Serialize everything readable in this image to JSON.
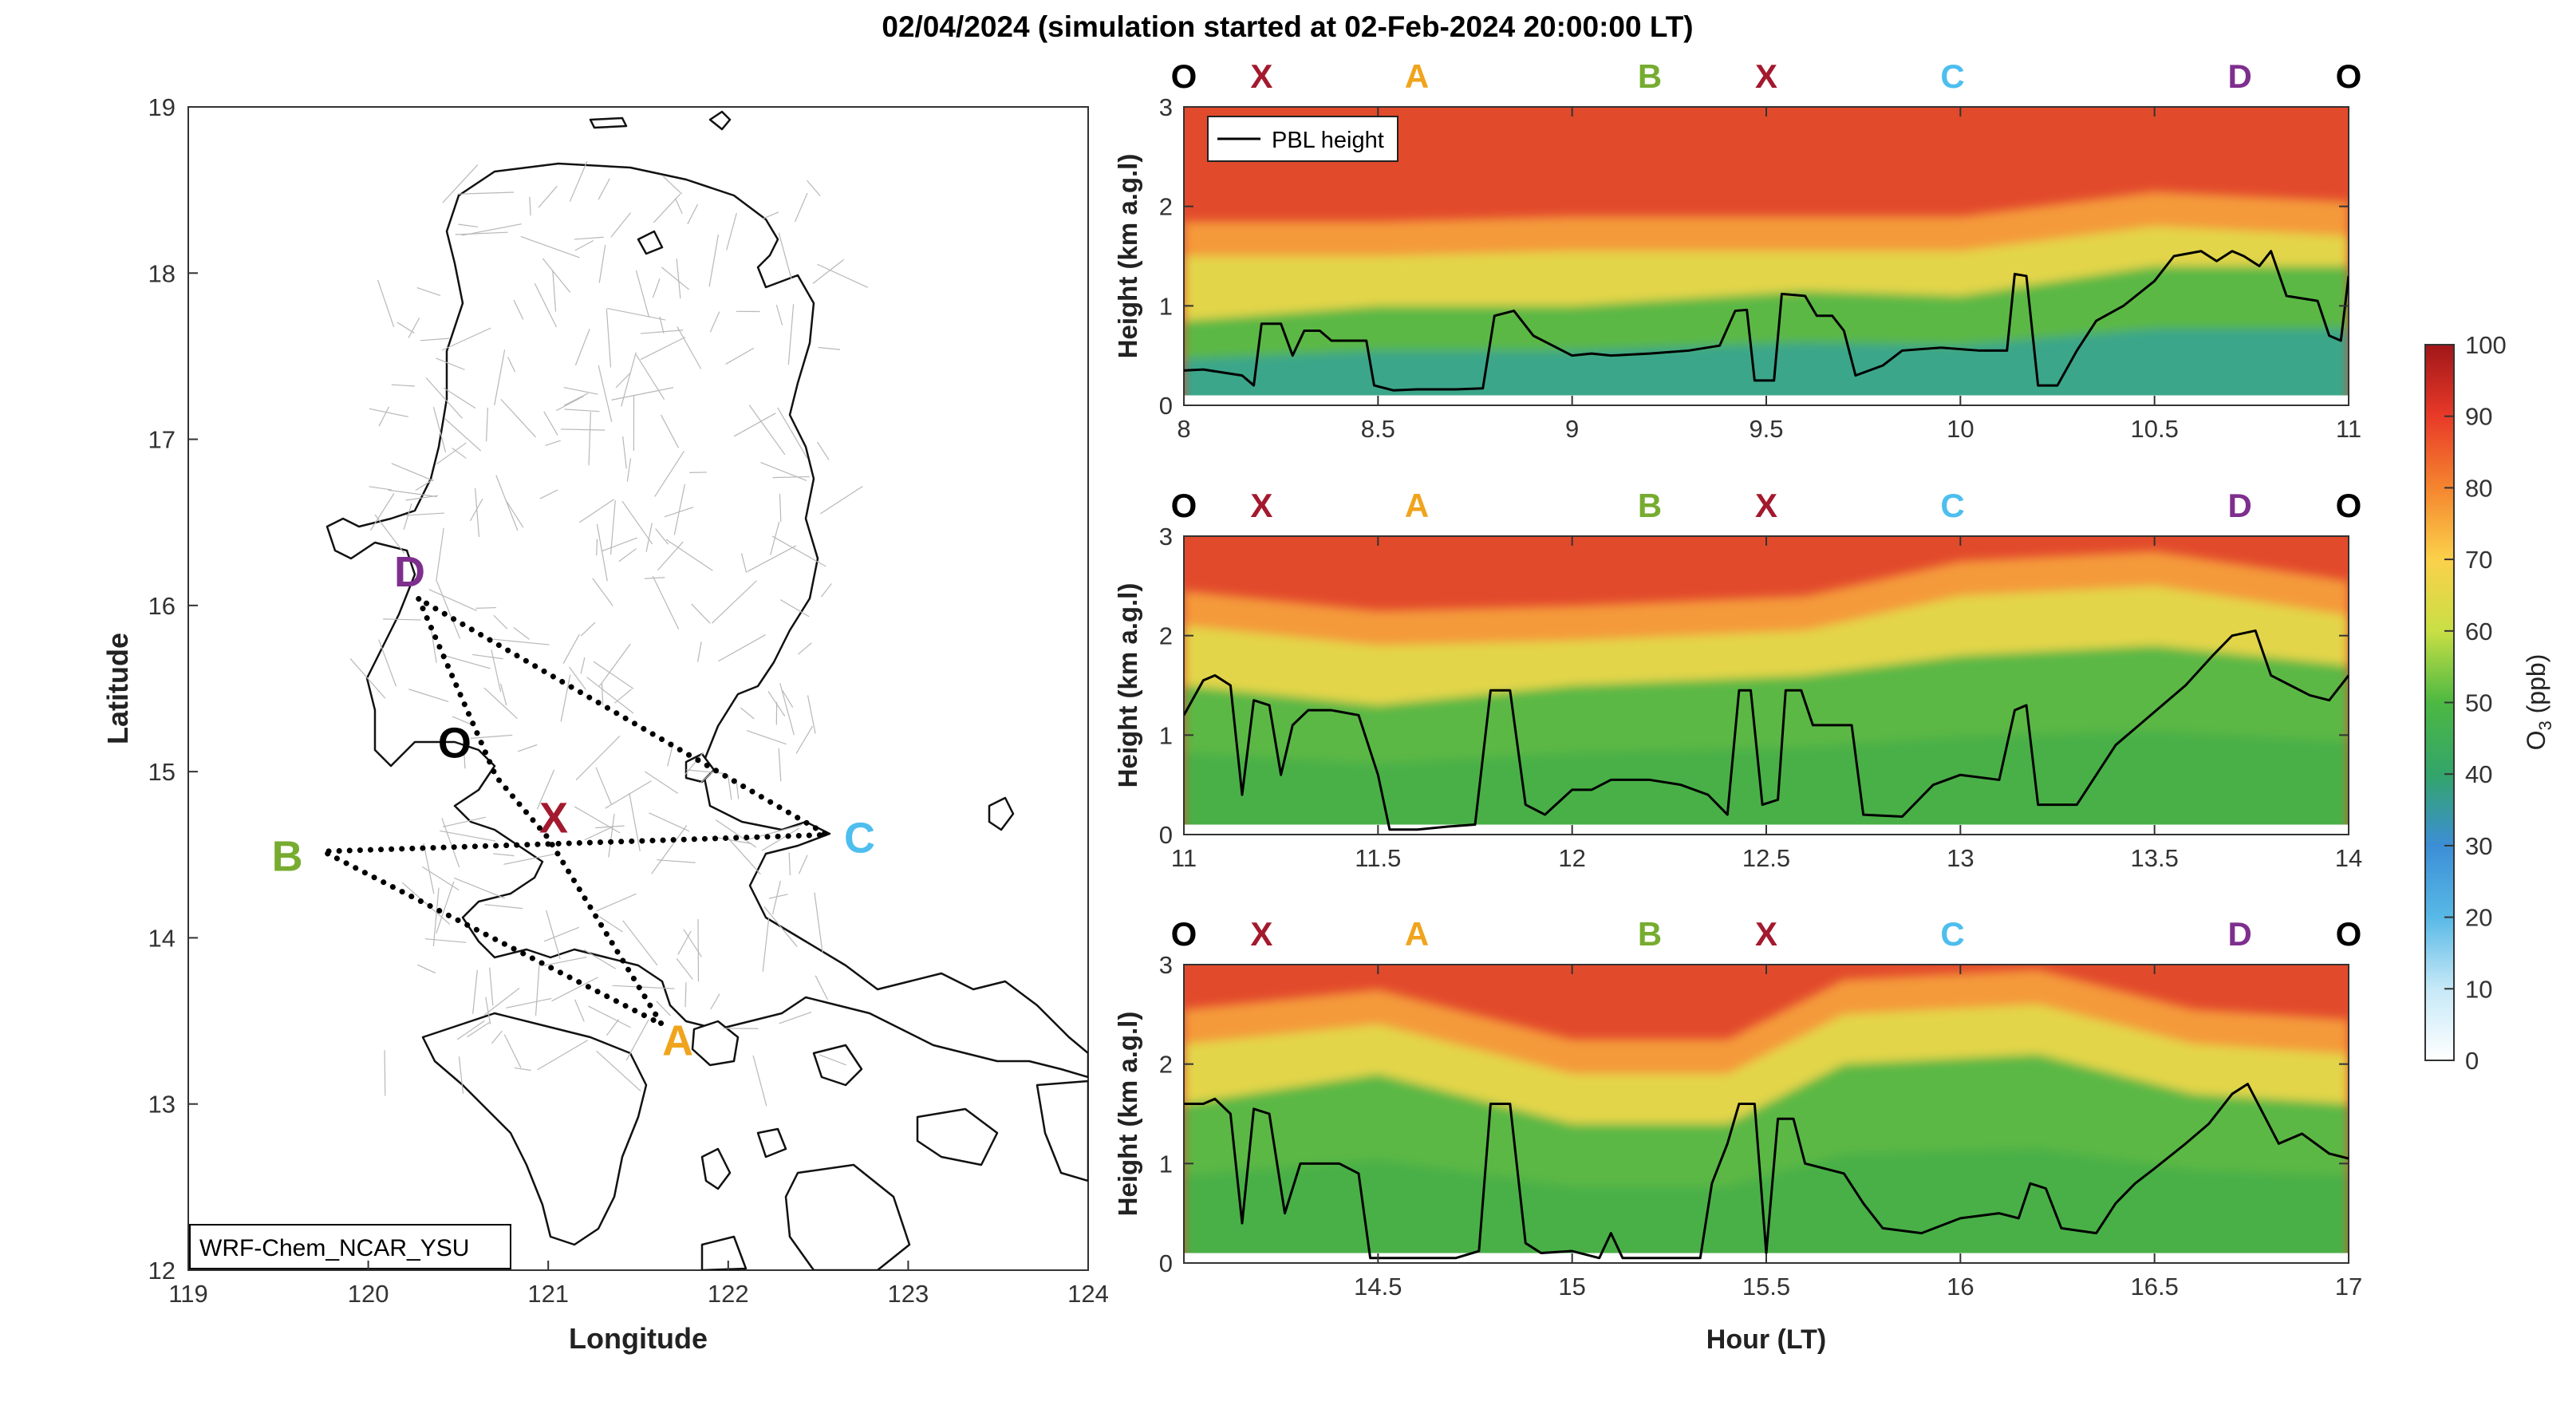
{
  "title": "02/04/2024 (simulation started at 02-Feb-2024 20:00:00 LT)",
  "map": {
    "label": "WRF-Chem_NCAR_YSU",
    "xlabel": "Longitude",
    "ylabel": "Latitude",
    "xlim": [
      119,
      124
    ],
    "ylim": [
      12,
      19
    ],
    "xticks": [
      "119",
      "120",
      "121",
      "122",
      "123",
      "124"
    ],
    "yticks": [
      "12",
      "13",
      "14",
      "15",
      "16",
      "17",
      "18",
      "19"
    ],
    "points": [
      {
        "name": "O",
        "lon": 120.48,
        "lat": 15.17,
        "color": "#000000"
      },
      {
        "name": "X",
        "lon": 121.03,
        "lat": 14.72,
        "color": "#a3192e"
      },
      {
        "name": "A",
        "lon": 121.72,
        "lat": 13.38,
        "color": "#f0a41d"
      },
      {
        "name": "B",
        "lon": 119.55,
        "lat": 14.49,
        "color": "#77ac30"
      },
      {
        "name": "C",
        "lon": 122.73,
        "lat": 14.6,
        "color": "#4dbeee"
      },
      {
        "name": "D",
        "lon": 120.23,
        "lat": 16.2,
        "color": "#7e2f8e"
      }
    ],
    "route": [
      {
        "lon": 120.28,
        "lat": 16.04
      },
      {
        "lon": 120.71,
        "lat": 14.97
      },
      {
        "lon": 121.0,
        "lat": 14.6
      },
      {
        "lon": 121.63,
        "lat": 13.48
      },
      {
        "lon": 119.75,
        "lat": 14.52
      },
      {
        "lon": 122.55,
        "lat": 14.62
      },
      {
        "lon": 120.28,
        "lat": 16.04
      }
    ]
  },
  "chart_data": [
    {
      "type": "heatmap",
      "xlim": [
        8,
        11
      ],
      "xticks": [
        "8",
        "8.5",
        "9",
        "9.5",
        "10",
        "10.5",
        "11"
      ],
      "ylim": [
        0,
        3
      ],
      "yticks": [
        "0",
        "1",
        "2",
        "3"
      ],
      "ylabel": "Height (km a.g.l)",
      "xlabel": "",
      "legend": "PBL height",
      "top_markers": [
        {
          "label": "O",
          "x": 8.0
        },
        {
          "label": "X",
          "x": 8.2
        },
        {
          "label": "A",
          "x": 8.6
        },
        {
          "label": "B",
          "x": 9.2
        },
        {
          "label": "X",
          "x": 9.5
        },
        {
          "label": "C",
          "x": 9.98
        },
        {
          "label": "D",
          "x": 10.72
        },
        {
          "label": "O",
          "x": 11.0
        }
      ],
      "pbl": [
        [
          8.0,
          0.35
        ],
        [
          8.05,
          0.36
        ],
        [
          8.1,
          0.33
        ],
        [
          8.15,
          0.3
        ],
        [
          8.18,
          0.2
        ],
        [
          8.2,
          0.82
        ],
        [
          8.25,
          0.82
        ],
        [
          8.28,
          0.5
        ],
        [
          8.31,
          0.75
        ],
        [
          8.35,
          0.75
        ],
        [
          8.38,
          0.65
        ],
        [
          8.47,
          0.65
        ],
        [
          8.49,
          0.2
        ],
        [
          8.54,
          0.15
        ],
        [
          8.6,
          0.16
        ],
        [
          8.7,
          0.16
        ],
        [
          8.77,
          0.17
        ],
        [
          8.8,
          0.9
        ],
        [
          8.85,
          0.95
        ],
        [
          8.9,
          0.7
        ],
        [
          8.95,
          0.6
        ],
        [
          9.0,
          0.5
        ],
        [
          9.05,
          0.52
        ],
        [
          9.1,
          0.5
        ],
        [
          9.2,
          0.52
        ],
        [
          9.3,
          0.55
        ],
        [
          9.38,
          0.6
        ],
        [
          9.42,
          0.95
        ],
        [
          9.45,
          0.96
        ],
        [
          9.47,
          0.25
        ],
        [
          9.52,
          0.25
        ],
        [
          9.54,
          1.12
        ],
        [
          9.6,
          1.1
        ],
        [
          9.63,
          0.9
        ],
        [
          9.67,
          0.9
        ],
        [
          9.7,
          0.75
        ],
        [
          9.73,
          0.3
        ],
        [
          9.8,
          0.4
        ],
        [
          9.85,
          0.55
        ],
        [
          9.95,
          0.58
        ],
        [
          10.05,
          0.55
        ],
        [
          10.12,
          0.55
        ],
        [
          10.14,
          1.32
        ],
        [
          10.17,
          1.3
        ],
        [
          10.2,
          0.2
        ],
        [
          10.25,
          0.2
        ],
        [
          10.3,
          0.55
        ],
        [
          10.35,
          0.85
        ],
        [
          10.42,
          1.0
        ],
        [
          10.5,
          1.25
        ],
        [
          10.55,
          1.5
        ],
        [
          10.62,
          1.55
        ],
        [
          10.66,
          1.45
        ],
        [
          10.7,
          1.55
        ],
        [
          10.73,
          1.5
        ],
        [
          10.77,
          1.4
        ],
        [
          10.8,
          1.55
        ],
        [
          10.84,
          1.1
        ],
        [
          10.92,
          1.05
        ],
        [
          10.95,
          0.7
        ],
        [
          10.98,
          0.65
        ],
        [
          11.0,
          1.3
        ]
      ],
      "band_rows": [
        [
          [
            8.0,
            0.12,
            0.85,
            1.5
          ],
          [
            8.5,
            0.85,
            1.0,
            1.5
          ],
          [
            9.0,
            0.12,
            1.0,
            1.55
          ],
          [
            9.6,
            0.12,
            1.15,
            1.55
          ],
          [
            10.0,
            0.1,
            1.1,
            1.55
          ],
          [
            10.5,
            0.12,
            1.4,
            1.8
          ],
          [
            11.0,
            0.1,
            1.4,
            1.7
          ]
        ]
      ]
    },
    {
      "type": "heatmap",
      "xlim": [
        11,
        14
      ],
      "xticks": [
        "11",
        "11.5",
        "12",
        "12.5",
        "13",
        "13.5",
        "14"
      ],
      "ylim": [
        0,
        3
      ],
      "yticks": [
        "0",
        "1",
        "2",
        "3"
      ],
      "ylabel": "Height (km a.g.l)",
      "xlabel": "",
      "top_markers": [
        {
          "label": "O",
          "x": 11.0
        },
        {
          "label": "X",
          "x": 11.2
        },
        {
          "label": "A",
          "x": 11.6
        },
        {
          "label": "B",
          "x": 12.2
        },
        {
          "label": "X",
          "x": 12.5
        },
        {
          "label": "C",
          "x": 12.98
        },
        {
          "label": "D",
          "x": 13.72
        },
        {
          "label": "O",
          "x": 14.0
        }
      ],
      "pbl": [
        [
          11.0,
          1.2
        ],
        [
          11.05,
          1.55
        ],
        [
          11.08,
          1.6
        ],
        [
          11.12,
          1.5
        ],
        [
          11.15,
          0.4
        ],
        [
          11.18,
          1.35
        ],
        [
          11.22,
          1.3
        ],
        [
          11.25,
          0.6
        ],
        [
          11.28,
          1.1
        ],
        [
          11.32,
          1.25
        ],
        [
          11.38,
          1.25
        ],
        [
          11.45,
          1.2
        ],
        [
          11.5,
          0.6
        ],
        [
          11.53,
          0.05
        ],
        [
          11.6,
          0.05
        ],
        [
          11.68,
          0.08
        ],
        [
          11.75,
          0.1
        ],
        [
          11.79,
          1.45
        ],
        [
          11.84,
          1.45
        ],
        [
          11.88,
          0.3
        ],
        [
          11.93,
          0.2
        ],
        [
          12.0,
          0.45
        ],
        [
          12.05,
          0.45
        ],
        [
          12.1,
          0.55
        ],
        [
          12.2,
          0.55
        ],
        [
          12.28,
          0.5
        ],
        [
          12.35,
          0.4
        ],
        [
          12.4,
          0.2
        ],
        [
          12.43,
          1.45
        ],
        [
          12.46,
          1.45
        ],
        [
          12.49,
          0.3
        ],
        [
          12.53,
          0.35
        ],
        [
          12.55,
          1.45
        ],
        [
          12.59,
          1.45
        ],
        [
          12.62,
          1.1
        ],
        [
          12.72,
          1.1
        ],
        [
          12.75,
          0.2
        ],
        [
          12.85,
          0.18
        ],
        [
          12.93,
          0.5
        ],
        [
          13.0,
          0.6
        ],
        [
          13.1,
          0.55
        ],
        [
          13.14,
          1.25
        ],
        [
          13.17,
          1.3
        ],
        [
          13.2,
          0.3
        ],
        [
          13.3,
          0.3
        ],
        [
          13.35,
          0.6
        ],
        [
          13.4,
          0.9
        ],
        [
          13.46,
          1.1
        ],
        [
          13.52,
          1.3
        ],
        [
          13.58,
          1.5
        ],
        [
          13.65,
          1.8
        ],
        [
          13.7,
          2.0
        ],
        [
          13.76,
          2.05
        ],
        [
          13.8,
          1.6
        ],
        [
          13.85,
          1.5
        ],
        [
          13.9,
          1.4
        ],
        [
          13.95,
          1.35
        ],
        [
          14.0,
          1.6
        ]
      ],
      "band_rows": [
        [
          [
            11.0,
            0.12,
            1.5,
            2.1
          ],
          [
            11.5,
            0.12,
            1.3,
            1.9
          ],
          [
            12.0,
            0.5,
            1.5,
            1.95
          ],
          [
            12.6,
            0.12,
            1.6,
            2.05
          ],
          [
            13.0,
            0.12,
            1.8,
            2.4
          ],
          [
            13.5,
            0.12,
            1.9,
            2.5
          ],
          [
            14.0,
            0.1,
            1.7,
            2.2
          ]
        ]
      ]
    },
    {
      "type": "heatmap",
      "xlim": [
        14,
        17
      ],
      "xticks": [
        "",
        "14.5",
        "15",
        "15.5",
        "16",
        "16.5",
        "17"
      ],
      "ylim": [
        0,
        3
      ],
      "yticks": [
        "0",
        "1",
        "2",
        "3"
      ],
      "ylabel": "Height (km a.g.l)",
      "xlabel": "Hour (LT)",
      "top_markers": [
        {
          "label": "O",
          "x": 14.0
        },
        {
          "label": "X",
          "x": 14.2
        },
        {
          "label": "A",
          "x": 14.6
        },
        {
          "label": "B",
          "x": 15.2
        },
        {
          "label": "X",
          "x": 15.5
        },
        {
          "label": "C",
          "x": 15.98
        },
        {
          "label": "D",
          "x": 16.72
        },
        {
          "label": "O",
          "x": 17.0
        }
      ],
      "pbl": [
        [
          14.0,
          1.6
        ],
        [
          14.05,
          1.6
        ],
        [
          14.08,
          1.65
        ],
        [
          14.12,
          1.5
        ],
        [
          14.15,
          0.4
        ],
        [
          14.18,
          1.55
        ],
        [
          14.22,
          1.5
        ],
        [
          14.26,
          0.5
        ],
        [
          14.3,
          1.0
        ],
        [
          14.36,
          1.0
        ],
        [
          14.4,
          1.0
        ],
        [
          14.45,
          0.9
        ],
        [
          14.48,
          0.05
        ],
        [
          14.6,
          0.05
        ],
        [
          14.7,
          0.05
        ],
        [
          14.76,
          0.12
        ],
        [
          14.79,
          1.6
        ],
        [
          14.84,
          1.6
        ],
        [
          14.88,
          0.2
        ],
        [
          14.92,
          0.1
        ],
        [
          15.0,
          0.12
        ],
        [
          15.07,
          0.05
        ],
        [
          15.1,
          0.3
        ],
        [
          15.13,
          0.05
        ],
        [
          15.2,
          0.05
        ],
        [
          15.3,
          0.05
        ],
        [
          15.33,
          0.05
        ],
        [
          15.36,
          0.8
        ],
        [
          15.4,
          1.2
        ],
        [
          15.43,
          1.6
        ],
        [
          15.47,
          1.6
        ],
        [
          15.5,
          0.1
        ],
        [
          15.53,
          1.45
        ],
        [
          15.57,
          1.45
        ],
        [
          15.6,
          1.0
        ],
        [
          15.7,
          0.9
        ],
        [
          15.75,
          0.6
        ],
        [
          15.8,
          0.35
        ],
        [
          15.9,
          0.3
        ],
        [
          16.0,
          0.45
        ],
        [
          16.1,
          0.5
        ],
        [
          16.15,
          0.45
        ],
        [
          16.18,
          0.8
        ],
        [
          16.22,
          0.75
        ],
        [
          16.26,
          0.35
        ],
        [
          16.35,
          0.3
        ],
        [
          16.4,
          0.6
        ],
        [
          16.45,
          0.8
        ],
        [
          16.5,
          0.95
        ],
        [
          16.58,
          1.2
        ],
        [
          16.64,
          1.4
        ],
        [
          16.7,
          1.7
        ],
        [
          16.74,
          1.8
        ],
        [
          16.78,
          1.5
        ],
        [
          16.82,
          1.2
        ],
        [
          16.88,
          1.3
        ],
        [
          16.95,
          1.1
        ],
        [
          17.0,
          1.05
        ]
      ],
      "band_rows": [
        [
          [
            14.0,
            0.12,
            1.6,
            2.2
          ],
          [
            14.5,
            0.12,
            1.9,
            2.4
          ],
          [
            15.0,
            0.12,
            1.4,
            1.9
          ],
          [
            15.4,
            0.3,
            1.4,
            1.9
          ],
          [
            15.7,
            0.12,
            2.0,
            2.5
          ],
          [
            16.2,
            0.12,
            2.1,
            2.6
          ],
          [
            16.6,
            0.12,
            1.7,
            2.2
          ],
          [
            17.0,
            0.12,
            1.6,
            2.1
          ]
        ]
      ]
    }
  ],
  "colorbar": {
    "label": "O3 (ppb)",
    "label_main": "O",
    "label_sub": "3",
    "label_unit": " (ppb)",
    "ticks": [
      "0",
      "10",
      "20",
      "30",
      "40",
      "50",
      "60",
      "70",
      "80",
      "90",
      "100"
    ],
    "colors": [
      "#ffffff",
      "#c6e9f7",
      "#58b9e6",
      "#3c8ed6",
      "#33a56a",
      "#4cb842",
      "#c9df45",
      "#fbd14a",
      "#f5852f",
      "#e83a28",
      "#a11619"
    ]
  }
}
